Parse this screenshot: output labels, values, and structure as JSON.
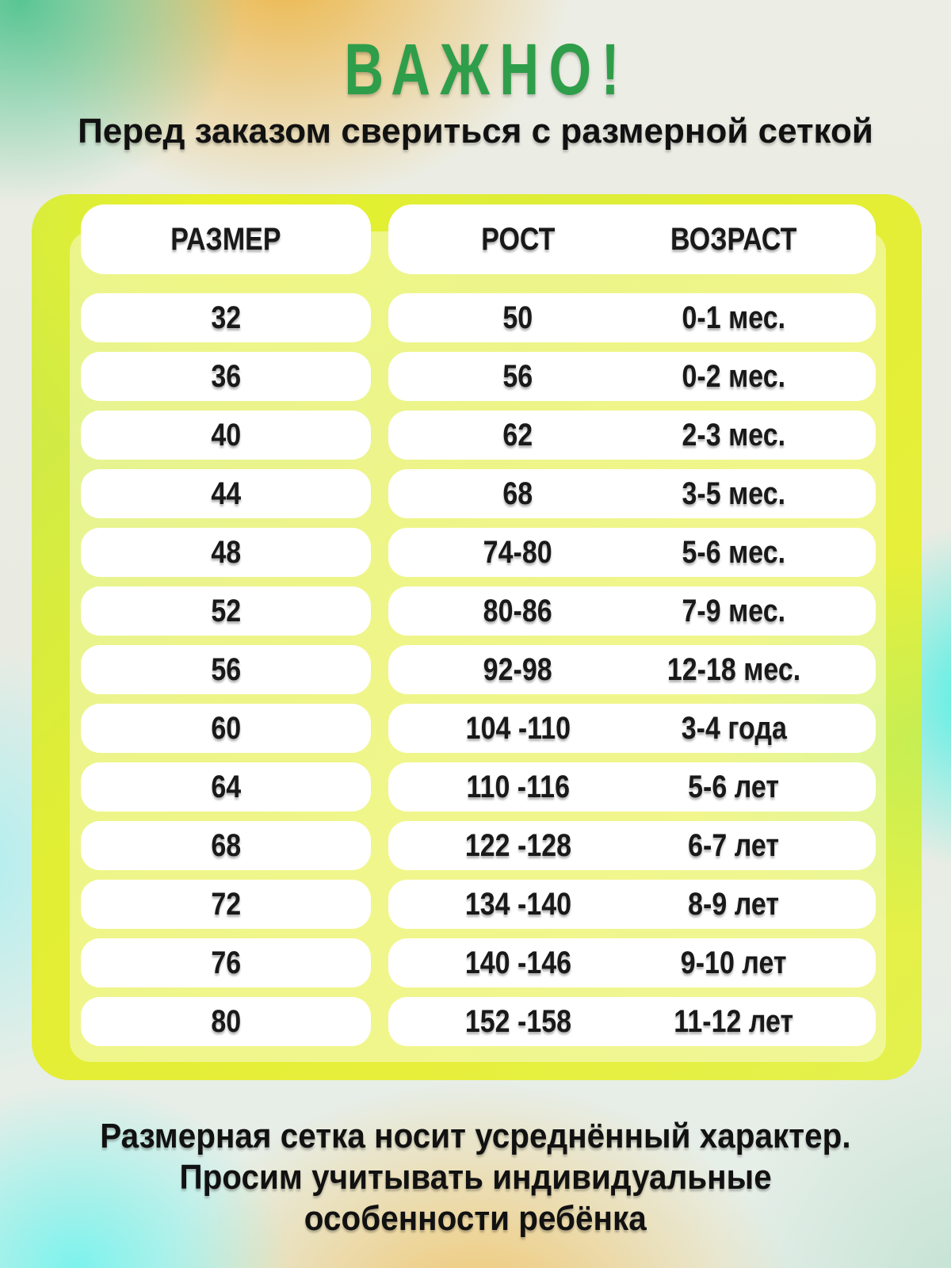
{
  "title": "ВАЖНО!",
  "subtitle": "Перед заказом свериться с размерной сеткой",
  "table": {
    "col_size": "РАЗМЕР",
    "col_height": "РОСТ",
    "col_age": "ВОЗРАСТ",
    "rows": [
      {
        "size": "32",
        "height": "50",
        "age": "0-1 мес."
      },
      {
        "size": "36",
        "height": "56",
        "age": "0-2 мес."
      },
      {
        "size": "40",
        "height": "62",
        "age": "2-3 мес."
      },
      {
        "size": "44",
        "height": "68",
        "age": "3-5 мес."
      },
      {
        "size": "48",
        "height": "74-80",
        "age": "5-6 мес."
      },
      {
        "size": "52",
        "height": "80-86",
        "age": "7-9 мес."
      },
      {
        "size": "56",
        "height": "92-98",
        "age": "12-18 мес."
      },
      {
        "size": "60",
        "height": "104 -110",
        "age": "3-4 года"
      },
      {
        "size": "64",
        "height": "110 -116",
        "age": "5-6 лет"
      },
      {
        "size": "68",
        "height": "122 -128",
        "age": "6-7 лет"
      },
      {
        "size": "72",
        "height": "134 -140",
        "age": "8-9 лет"
      },
      {
        "size": "76",
        "height": "140 -146",
        "age": "9-10 лет"
      },
      {
        "size": "80",
        "height": "152 -158",
        "age": "11-12 лет"
      }
    ]
  },
  "footer": {
    "line1": "Размерная сетка носит усреднённый характер.",
    "line2": "Просим учитывать индивидуальные",
    "line3": "особенности ребёнка"
  },
  "colors": {
    "accent_green": "#2f9e4a",
    "board_lime": "#e4ef3c",
    "pill_white": "#ffffff",
    "text_dark": "#191919"
  },
  "chart_data": {
    "type": "table",
    "title": "ВАЖНО! Перед заказом свериться с размерной сеткой",
    "columns": [
      "РАЗМЕР",
      "РОСТ",
      "ВОЗРАСТ"
    ],
    "rows": [
      [
        "32",
        "50",
        "0-1 мес."
      ],
      [
        "36",
        "56",
        "0-2 мес."
      ],
      [
        "40",
        "62",
        "2-3 мес."
      ],
      [
        "44",
        "68",
        "3-5 мес."
      ],
      [
        "48",
        "74-80",
        "5-6 мес."
      ],
      [
        "52",
        "80-86",
        "7-9 мес."
      ],
      [
        "56",
        "92-98",
        "12-18 мес."
      ],
      [
        "60",
        "104 -110",
        "3-4 года"
      ],
      [
        "64",
        "110 -116",
        "5-6 лет"
      ],
      [
        "68",
        "122 -128",
        "6-7 лет"
      ],
      [
        "72",
        "134 -140",
        "8-9 лет"
      ],
      [
        "76",
        "140 -146",
        "9-10 лет"
      ],
      [
        "80",
        "152 -158",
        "11-12 лет"
      ]
    ],
    "note": "Размерная сетка носит усреднённый характер. Просим учитывать индивидуальные особенности ребёнка"
  }
}
